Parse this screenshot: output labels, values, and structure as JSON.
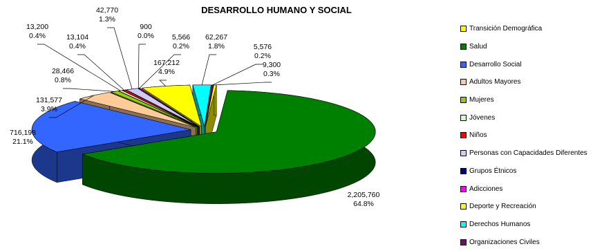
{
  "chart_data": {
    "type": "pie",
    "title": "DESARROLLO HUMANO Y SOCIAL",
    "slices": [
      {
        "name": "Transición Demográfica",
        "value": 9300,
        "value_label": "9,300",
        "percent_label": "0.3%",
        "color": "#ffff00"
      },
      {
        "name": "Salud",
        "value": 2205760,
        "value_label": "2,205,760",
        "percent_label": "64.8%",
        "color": "#008000"
      },
      {
        "name": "Desarrollo Social",
        "value": 716198,
        "value_label": "716,198",
        "percent_label": "21.1%",
        "color": "#3366ff"
      },
      {
        "name": "Adultos Mayores",
        "value": 131577,
        "value_label": "131,577",
        "percent_label": "3.9%",
        "color": "#ffcc99"
      },
      {
        "name": "Mujeres",
        "value": 28466,
        "value_label": "28,466",
        "percent_label": "0.8%",
        "color": "#99cc00"
      },
      {
        "name": "Jóvenes",
        "value": 13200,
        "value_label": "13,200",
        "percent_label": "0.4%",
        "color": "#ccffcc"
      },
      {
        "name": "Niños",
        "value": 13104,
        "value_label": "13,104",
        "percent_label": "0.4%",
        "color": "#ff0000"
      },
      {
        "name": "Personas con Capacidades Diferentes",
        "value": 42770,
        "value_label": "42,770",
        "percent_label": "1.3%",
        "color": "#ccccff"
      },
      {
        "name": "Grupos Étnicos",
        "value": 900,
        "value_label": "900",
        "percent_label": "0.0%",
        "color": "#000080"
      },
      {
        "name": "Adicciones",
        "value": 5566,
        "value_label": "5,566",
        "percent_label": "0.2%",
        "color": "#ff00ff"
      },
      {
        "name": "Deporte y Recreación",
        "value": 167212,
        "value_label": "167,212",
        "percent_label": "4.9%",
        "color": "#ffff00"
      },
      {
        "name": "Derechos Humanos",
        "value": 62267,
        "value_label": "62,267",
        "percent_label": "1.8%",
        "color": "#00ffff"
      },
      {
        "name": "Organizaciones Civiles",
        "value": 5576,
        "value_label": "5,576",
        "percent_label": "0.2%",
        "color": "#800080"
      }
    ],
    "legend_position": "right",
    "style": "3d-exploded"
  }
}
